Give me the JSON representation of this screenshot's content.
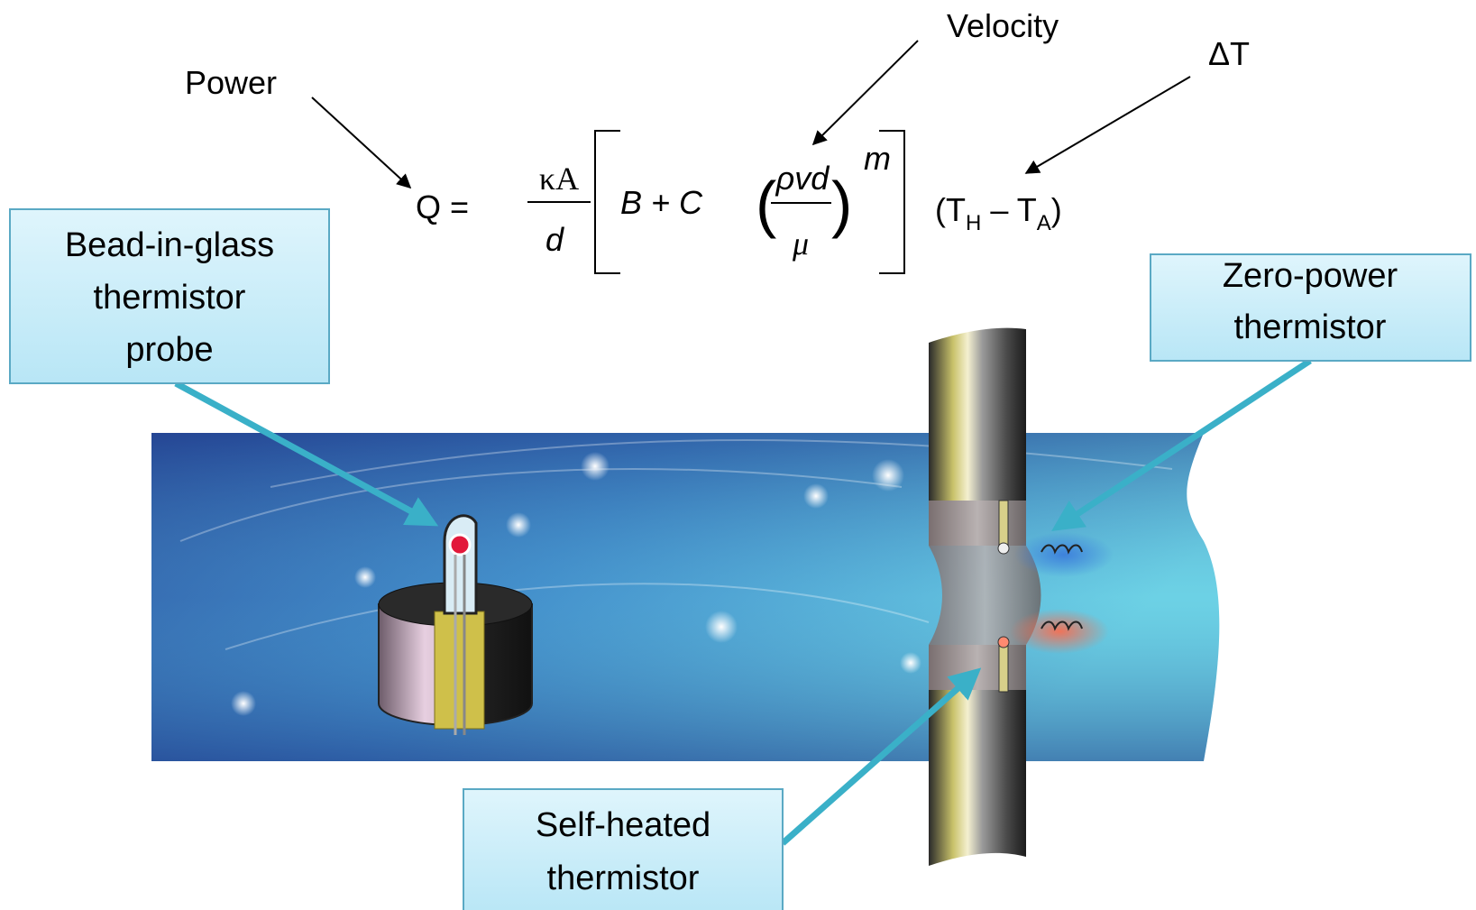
{
  "labels": {
    "power": "Power",
    "velocity": "Velocity",
    "delta_t": "ΔT"
  },
  "equation": {
    "lhs": "Q =",
    "numerator": "κA",
    "denominator": "d",
    "bracket_terms": "B + C",
    "inner_numerator": "ρvd",
    "inner_denominator": "μ",
    "exponent": "m",
    "difference": {
      "open": "(T",
      "sub_hot": "H",
      "minus": " – T",
      "sub_ambient": "A",
      "close": ")"
    }
  },
  "callouts": {
    "bead": [
      "Bead-in-glass",
      "thermistor",
      "probe"
    ],
    "zero_power": [
      "Zero-power",
      "thermistor"
    ],
    "self_heated": [
      "Self-heated",
      "thermistor"
    ]
  }
}
